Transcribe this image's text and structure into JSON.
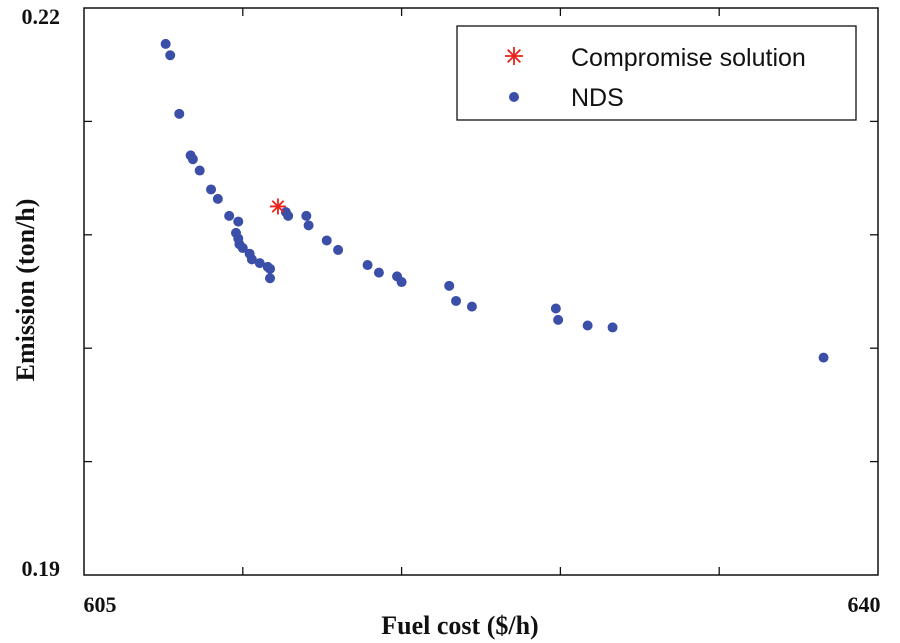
{
  "chart_data": {
    "type": "scatter",
    "title": "",
    "xlabel": "Fuel cost ($/h)",
    "ylabel": "Emission (ton/h)",
    "xlim": [
      605,
      640
    ],
    "ylim": [
      0.19,
      0.22
    ],
    "x_tick_labels": [
      "605",
      "640"
    ],
    "y_tick_labels": [
      "0.22",
      "0.19"
    ],
    "legend_position": "top-right",
    "series": [
      {
        "name": "Compromise solution",
        "marker": "asterisk",
        "color": "#e8231b",
        "points": [
          [
            613.55,
            0.2095
          ]
        ]
      },
      {
        "name": "NDS",
        "marker": "dot",
        "color": "#3b4ea8",
        "points": [
          [
            608.6,
            0.2181
          ],
          [
            608.8,
            0.2175
          ],
          [
            609.2,
            0.2144
          ],
          [
            609.7,
            0.2122
          ],
          [
            609.8,
            0.212
          ],
          [
            610.1,
            0.2114
          ],
          [
            610.6,
            0.2104
          ],
          [
            610.9,
            0.2099
          ],
          [
            611.4,
            0.209
          ],
          [
            611.8,
            0.2087
          ],
          [
            611.7,
            0.2081
          ],
          [
            611.8,
            0.2078
          ],
          [
            611.85,
            0.2075
          ],
          [
            612.0,
            0.2073
          ],
          [
            612.3,
            0.207
          ],
          [
            612.4,
            0.2067
          ],
          [
            612.75,
            0.2065
          ],
          [
            613.1,
            0.2063
          ],
          [
            613.2,
            0.2062
          ],
          [
            613.2,
            0.2057
          ],
          [
            613.9,
            0.2092
          ],
          [
            614.0,
            0.209
          ],
          [
            614.8,
            0.209
          ],
          [
            614.9,
            0.2085
          ],
          [
            615.7,
            0.2077
          ],
          [
            616.2,
            0.2072
          ],
          [
            617.5,
            0.2064
          ],
          [
            618.0,
            0.206
          ],
          [
            618.8,
            0.2058
          ],
          [
            619.0,
            0.2055
          ],
          [
            621.1,
            0.2053
          ],
          [
            621.4,
            0.2045
          ],
          [
            622.1,
            0.2042
          ],
          [
            625.8,
            0.2041
          ],
          [
            625.9,
            0.2035
          ],
          [
            627.2,
            0.2032
          ],
          [
            628.3,
            0.2031
          ],
          [
            637.6,
            0.2015
          ]
        ]
      }
    ]
  }
}
